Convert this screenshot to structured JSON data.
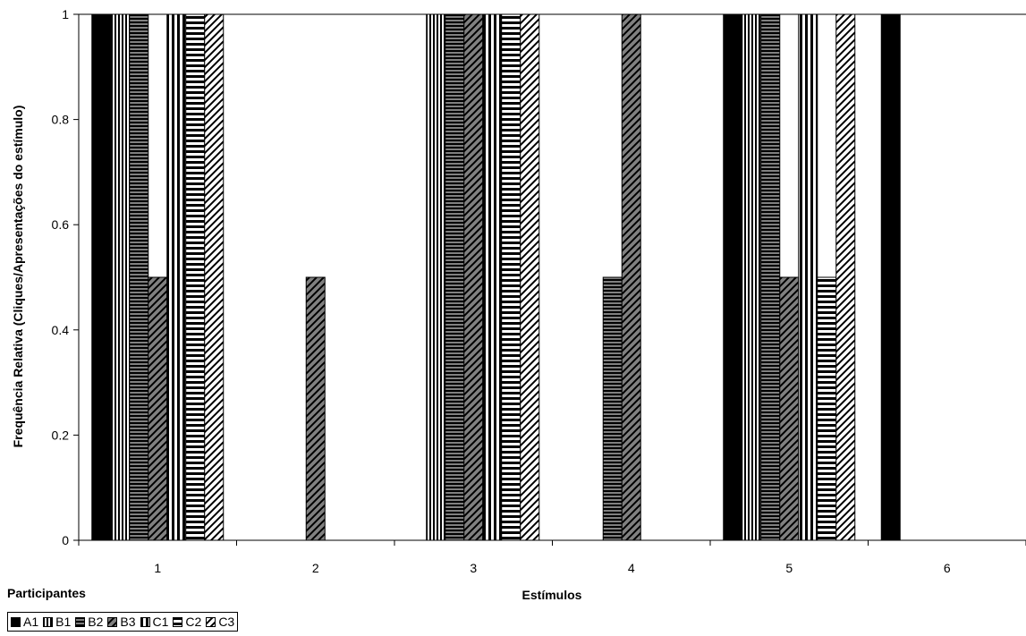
{
  "chart_data": {
    "type": "bar",
    "categories": [
      "1",
      "2",
      "3",
      "4",
      "5",
      "6"
    ],
    "series": [
      {
        "name": "A1",
        "pattern": "solid",
        "values": [
          1,
          0,
          0,
          0,
          1,
          1
        ]
      },
      {
        "name": "B1",
        "pattern": "vertical",
        "values": [
          1,
          0,
          1,
          0,
          1,
          0
        ]
      },
      {
        "name": "B2",
        "pattern": "horizontal",
        "values": [
          1,
          0,
          1,
          0.5,
          1,
          0
        ]
      },
      {
        "name": "B3",
        "pattern": "diag-gray",
        "values": [
          0.5,
          0.5,
          1,
          1,
          0.5,
          0
        ]
      },
      {
        "name": "C1",
        "pattern": "vertical-wide",
        "values": [
          1,
          0,
          1,
          0,
          1,
          0
        ]
      },
      {
        "name": "C2",
        "pattern": "horizontal-wide",
        "values": [
          1,
          0,
          1,
          0,
          0.5,
          0
        ]
      },
      {
        "name": "C3",
        "pattern": "diag-white",
        "values": [
          1,
          0,
          1,
          0,
          1,
          0
        ]
      }
    ],
    "xlabel": "Estímulos",
    "ylabel": "Frequência Relativa (Cliques/Apresentações do estímulo)",
    "ylim": [
      0,
      1
    ],
    "yticks": [
      "0",
      "0.2",
      "0.4",
      "0.6",
      "0.8",
      "1"
    ],
    "grid": false,
    "legend_title": "Participantes",
    "legend_position": "bottom-left"
  }
}
